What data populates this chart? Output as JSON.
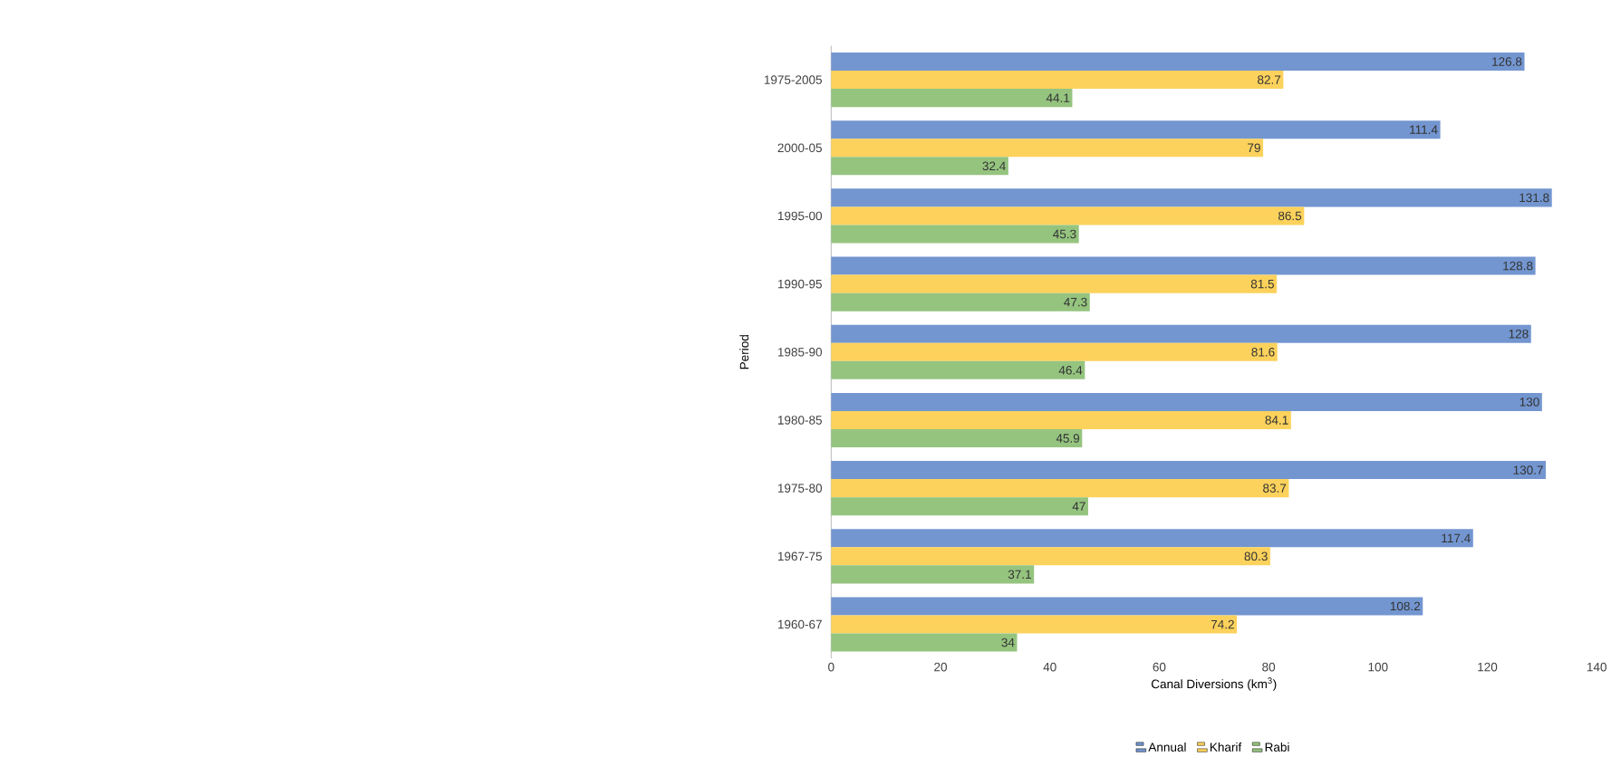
{
  "chart_data": {
    "type": "bar",
    "orientation": "horizontal",
    "xlabel": "Canal Diversions (km$^{3}$)",
    "ylabel": "Period",
    "categories": [
      "1975-2005",
      "2000-05",
      "1995-00",
      "1990-95",
      "1985-90",
      "1980-85",
      "1975-80",
      "1967-75",
      "1960-67"
    ],
    "series": [
      {
        "name": "Annual",
        "color": "#7396d0",
        "values": [
          126.8,
          111.4,
          131.8,
          128.8,
          128,
          130,
          130.7,
          117.4,
          108.2
        ]
      },
      {
        "name": "Kharif",
        "color": "#fcd25c",
        "values": [
          82.7,
          79,
          86.5,
          81.5,
          81.6,
          84.1,
          83.7,
          80.3,
          74.2
        ]
      },
      {
        "name": "Rabi",
        "color": "#95c47f",
        "values": [
          44.1,
          32.4,
          45.3,
          47.3,
          46.4,
          45.9,
          47,
          37.1,
          34
        ]
      }
    ],
    "xlim": [
      0,
      140
    ],
    "xticks": [
      0,
      20,
      40,
      60,
      80,
      100,
      120,
      140
    ],
    "grid": false,
    "legend": "bottom",
    "data_labels": true
  }
}
